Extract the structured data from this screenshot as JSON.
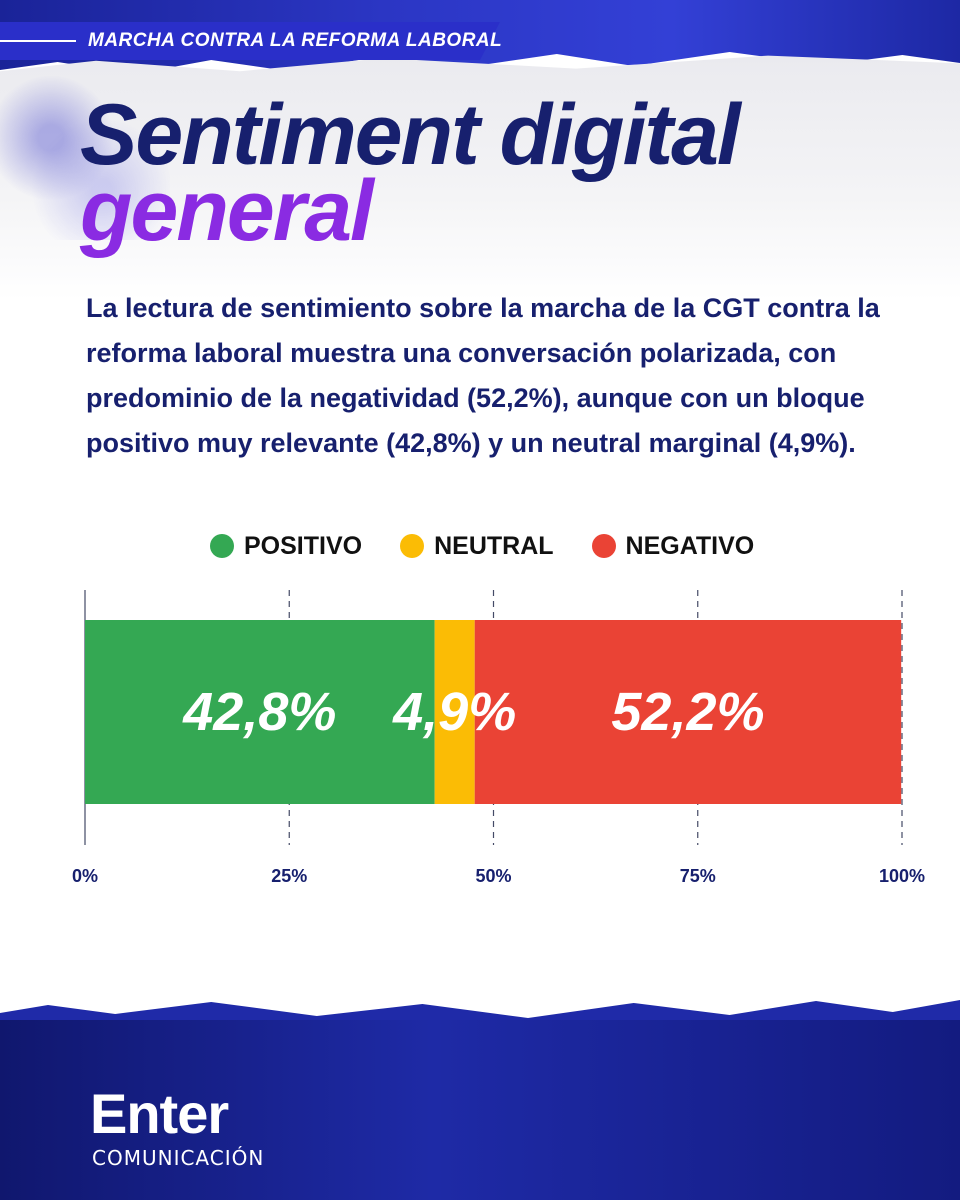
{
  "header": {
    "banner": "MARCHA CONTRA LA REFORMA LABORAL",
    "title_line1": "Sentiment digital",
    "title_line2": "general",
    "description": "La lectura de sentimiento sobre la marcha de la CGT contra la reforma laboral muestra una conversación polarizada, con predominio de la negatividad (52,2%), aunque con un bloque positivo muy relevante (42,8%) y un neutral marginal (4,9%)."
  },
  "colors": {
    "positivo": "#34a853",
    "neutral": "#fbbc05",
    "negativo": "#ea4335",
    "navy": "#17206e",
    "purple": "#8a2be2"
  },
  "chart_data": {
    "type": "bar",
    "orientation": "horizontal-stacked",
    "categories": [
      "Sentiment"
    ],
    "series": [
      {
        "name": "POSITIVO",
        "values": [
          42.8
        ],
        "label": "42,8%"
      },
      {
        "name": "NEUTRAL",
        "values": [
          4.9
        ],
        "label": "4,9%"
      },
      {
        "name": "NEGATIVO",
        "values": [
          52.2
        ],
        "label": "52,2%"
      }
    ],
    "xlim": [
      0,
      100
    ],
    "xticks": [
      "0%",
      "25%",
      "50%",
      "75%",
      "100%"
    ],
    "grid": "dashed vertical",
    "legend": "top-center"
  },
  "footer": {
    "logo_main": "Enter",
    "logo_sub": "COMUNICACIÓN"
  }
}
